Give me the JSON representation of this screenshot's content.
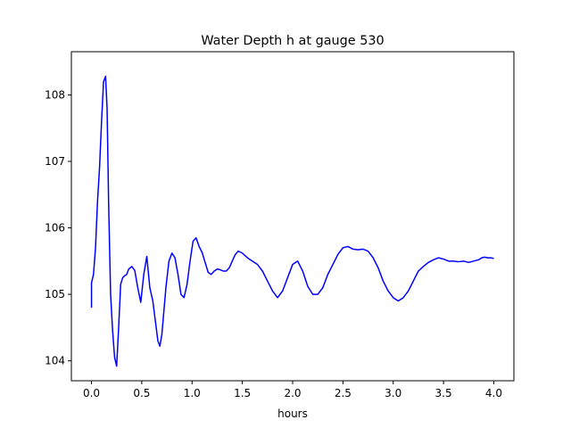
{
  "chart_data": {
    "type": "line",
    "title": "Water Depth h at gauge 530",
    "xlabel": "hours",
    "ylabel": "",
    "xlim": [
      -0.2,
      4.2
    ],
    "ylim": [
      103.7,
      108.65
    ],
    "xticks": [
      0.0,
      0.5,
      1.0,
      1.5,
      2.0,
      2.5,
      3.0,
      3.5,
      4.0
    ],
    "xtick_labels": [
      "0.0",
      "0.5",
      "1.0",
      "1.5",
      "2.0",
      "2.5",
      "3.0",
      "3.5",
      "4.0"
    ],
    "yticks": [
      104,
      105,
      106,
      107,
      108
    ],
    "ytick_labels": [
      "104",
      "105",
      "106",
      "107",
      "108"
    ],
    "grid": false,
    "series": [
      {
        "color": "#0000ff",
        "x": [
          0.0,
          0.0,
          0.02,
          0.04,
          0.06,
          0.08,
          0.1,
          0.12,
          0.14,
          0.155,
          0.17,
          0.19,
          0.21,
          0.23,
          0.25,
          0.27,
          0.29,
          0.31,
          0.33,
          0.35,
          0.37,
          0.4,
          0.43,
          0.46,
          0.49,
          0.52,
          0.55,
          0.58,
          0.61,
          0.635,
          0.66,
          0.68,
          0.7,
          0.72,
          0.74,
          0.77,
          0.8,
          0.83,
          0.86,
          0.89,
          0.92,
          0.95,
          0.98,
          1.01,
          1.04,
          1.07,
          1.1,
          1.13,
          1.16,
          1.19,
          1.22,
          1.25,
          1.28,
          1.31,
          1.34,
          1.37,
          1.4,
          1.43,
          1.46,
          1.5,
          1.55,
          1.6,
          1.65,
          1.7,
          1.75,
          1.8,
          1.85,
          1.9,
          1.95,
          2.0,
          2.05,
          2.1,
          2.15,
          2.2,
          2.25,
          2.3,
          2.35,
          2.4,
          2.45,
          2.5,
          2.55,
          2.6,
          2.65,
          2.7,
          2.75,
          2.8,
          2.85,
          2.9,
          2.95,
          3.0,
          3.05,
          3.1,
          3.15,
          3.2,
          3.25,
          3.3,
          3.35,
          3.4,
          3.45,
          3.5,
          3.55,
          3.6,
          3.65,
          3.7,
          3.75,
          3.8,
          3.85,
          3.88,
          3.91,
          3.94,
          3.97,
          4.0
        ],
        "y": [
          104.8,
          105.17,
          105.3,
          105.7,
          106.4,
          106.9,
          107.6,
          108.2,
          108.28,
          107.8,
          106.4,
          105.0,
          104.45,
          104.05,
          103.92,
          104.5,
          105.15,
          105.25,
          105.28,
          105.3,
          105.38,
          105.42,
          105.36,
          105.1,
          104.88,
          105.3,
          105.57,
          105.1,
          104.9,
          104.6,
          104.3,
          104.22,
          104.4,
          104.75,
          105.1,
          105.5,
          105.62,
          105.55,
          105.3,
          105.0,
          104.95,
          105.15,
          105.5,
          105.8,
          105.85,
          105.72,
          105.63,
          105.48,
          105.33,
          105.3,
          105.35,
          105.38,
          105.37,
          105.35,
          105.35,
          105.4,
          105.5,
          105.6,
          105.65,
          105.62,
          105.55,
          105.5,
          105.45,
          105.35,
          105.2,
          105.05,
          104.95,
          105.05,
          105.25,
          105.45,
          105.5,
          105.35,
          105.12,
          105.0,
          105.0,
          105.1,
          105.3,
          105.45,
          105.6,
          105.7,
          105.72,
          105.68,
          105.67,
          105.68,
          105.65,
          105.55,
          105.4,
          105.2,
          105.05,
          104.95,
          104.9,
          104.95,
          105.05,
          105.2,
          105.35,
          105.42,
          105.48,
          105.52,
          105.55,
          105.53,
          105.5,
          105.5,
          105.49,
          105.5,
          105.48,
          105.5,
          105.52,
          105.55,
          105.56,
          105.55,
          105.55,
          105.54
        ]
      }
    ]
  }
}
